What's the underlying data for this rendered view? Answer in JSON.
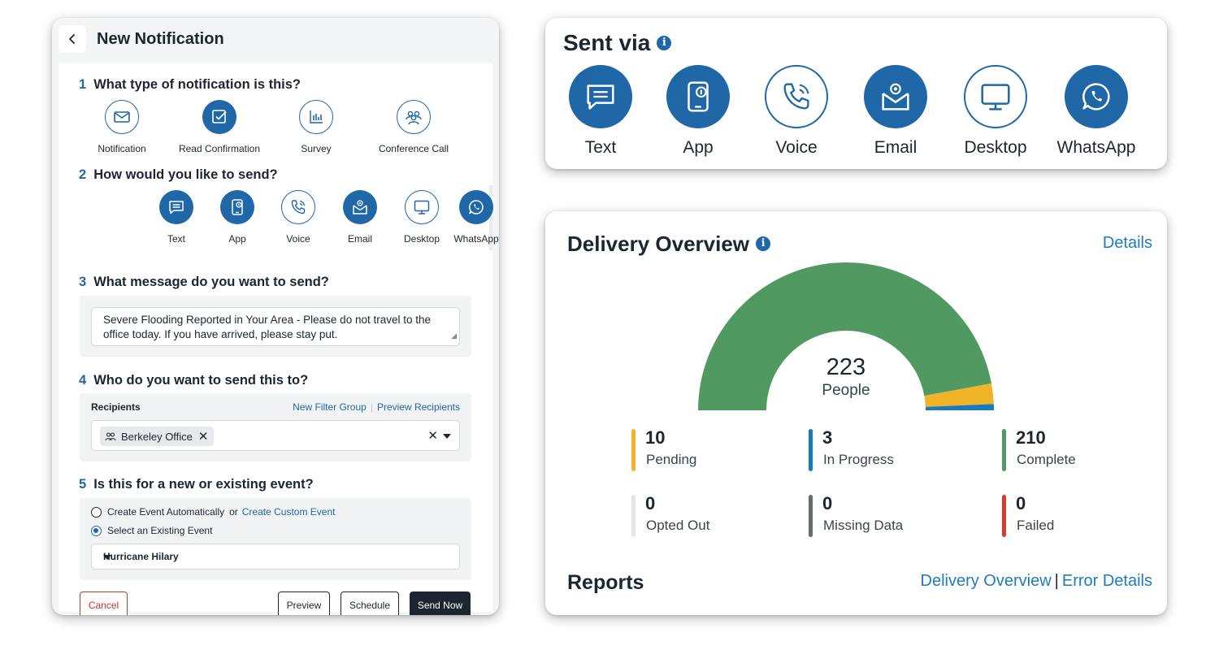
{
  "form": {
    "title": "New Notification",
    "steps": {
      "s1": {
        "num": "1",
        "text": "What type of notification is this?"
      },
      "s2": {
        "num": "2",
        "text": "How would you like to send?"
      },
      "s3": {
        "num": "3",
        "text": "What message do you want to send?"
      },
      "s4": {
        "num": "4",
        "text": "Who do you want to send this to?"
      },
      "s5": {
        "num": "5",
        "text": "Is this for a new or existing event?"
      }
    },
    "types": [
      {
        "label": "Notification",
        "icon": "envelope-icon",
        "selected": false
      },
      {
        "label": "Read Confirmation",
        "icon": "checkbox-icon",
        "selected": true
      },
      {
        "label": "Survey",
        "icon": "bar-chart-icon",
        "selected": false
      },
      {
        "label": "Conference Call",
        "icon": "people-group-icon",
        "selected": false
      }
    ],
    "channels": [
      {
        "label": "Text",
        "icon": "chat-bubble-icon",
        "selected": true
      },
      {
        "label": "App",
        "icon": "mobile-app-icon",
        "selected": true
      },
      {
        "label": "Voice",
        "icon": "phone-icon",
        "selected": false
      },
      {
        "label": "Email",
        "icon": "email-icon",
        "selected": true
      },
      {
        "label": "Desktop",
        "icon": "monitor-icon",
        "selected": false
      },
      {
        "label": "WhatsApp",
        "icon": "whatsapp-icon",
        "selected": true
      }
    ],
    "message": "Severe Flooding Reported in Your Area - Please do not travel to the office today. If you have arrived, please stay put.",
    "recipients": {
      "label": "Recipients",
      "new_filter_group": "New Filter Group",
      "preview_recipients": "Preview Recipients",
      "chip": "Berkeley Office",
      "clear": "✕"
    },
    "event": {
      "create_auto": "Create Event Automatically",
      "or": "or",
      "create_custom": "Create Custom Event",
      "select_existing": "Select an Existing Event",
      "selected_event": "Hurricane Hilary",
      "mode": "existing"
    },
    "buttons": {
      "cancel": "Cancel",
      "preview": "Preview",
      "schedule": "Schedule",
      "send_now": "Send Now"
    }
  },
  "sent_via": {
    "title": "Sent via",
    "info": "i",
    "channels": [
      {
        "label": "Text",
        "icon": "chat-bubble-icon",
        "active": true
      },
      {
        "label": "App",
        "icon": "mobile-app-icon",
        "active": true
      },
      {
        "label": "Voice",
        "icon": "phone-icon",
        "active": false
      },
      {
        "label": "Email",
        "icon": "email-icon",
        "active": true
      },
      {
        "label": "Desktop",
        "icon": "monitor-icon",
        "active": false
      },
      {
        "label": "WhatsApp",
        "icon": "whatsapp-icon",
        "active": true
      }
    ]
  },
  "delivery": {
    "title": "Delivery Overview",
    "info": "i",
    "details": "Details",
    "total": "223",
    "total_label": "People",
    "stats": [
      {
        "value": "10",
        "label": "Pending",
        "color": "#f0b429"
      },
      {
        "value": "3",
        "label": "In Progress",
        "color": "#1a7abf"
      },
      {
        "value": "210",
        "label": "Complete",
        "color": "#509960"
      },
      {
        "value": "0",
        "label": "Opted Out",
        "color": "#e3e5e8"
      },
      {
        "value": "0",
        "label": "Missing Data",
        "color": "#666b70"
      },
      {
        "value": "0",
        "label": "Failed",
        "color": "#d63b30"
      }
    ],
    "reports_title": "Reports",
    "report_links": {
      "overview": "Delivery Overview",
      "sep": "|",
      "errors": "Error Details"
    }
  },
  "chart_data": {
    "type": "pie",
    "categories": [
      "Complete",
      "Pending",
      "In Progress"
    ],
    "values": [
      210,
      10,
      3
    ],
    "colors": [
      "#509960",
      "#f0b429",
      "#1a7abf"
    ],
    "title": "",
    "style": "half-donut gauge"
  },
  "colors": {
    "brand": "#1f67a6",
    "link": "#1f7bbf",
    "dark": "#1d2630",
    "cancel": "#c0392b"
  }
}
